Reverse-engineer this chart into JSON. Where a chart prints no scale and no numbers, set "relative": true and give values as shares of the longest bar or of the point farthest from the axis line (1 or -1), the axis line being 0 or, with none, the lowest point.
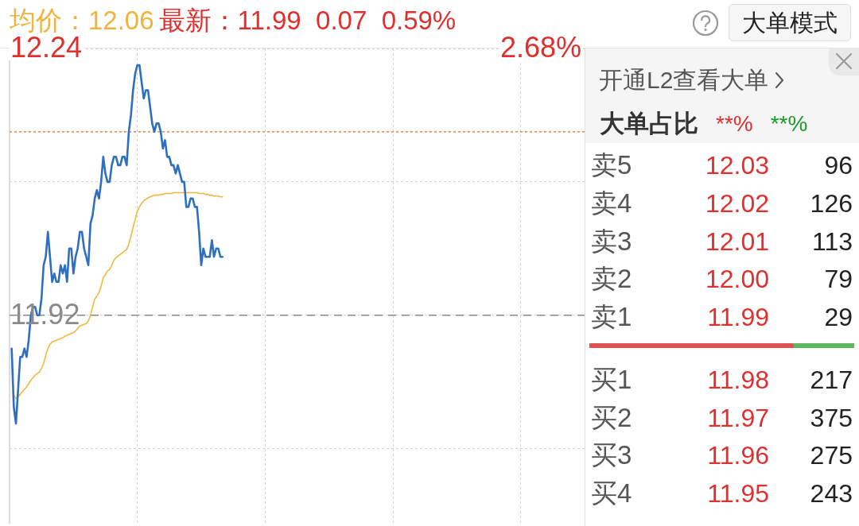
{
  "chart_data": [
    {
      "type": "line",
      "title": "均价：12.06",
      "subtitle": "最新：11.99  0.07  0.59%",
      "annotations": [
        "2.68%",
        "大单模式"
      ],
      "categories": [
        null,
        null,
        null,
        null,
        null,
        null,
        null,
        null,
        null,
        null,
        null,
        null,
        null,
        null,
        null,
        null,
        null,
        null,
        null,
        null,
        null,
        null,
        null,
        null,
        null,
        null,
        null,
        null,
        null,
        null,
        null,
        null,
        null,
        null,
        null,
        null,
        null,
        null,
        null,
        null,
        null,
        null,
        null,
        null,
        null,
        null,
        null,
        null,
        null,
        null,
        null,
        null,
        null,
        null,
        null,
        null,
        null,
        null,
        null,
        null,
        null,
        null,
        null,
        null,
        null,
        null,
        null,
        null,
        null,
        null,
        null,
        null,
        null,
        null,
        null,
        null,
        null,
        null,
        null,
        null,
        null,
        null,
        null,
        null,
        null,
        null,
        null,
        null,
        null,
        null,
        null,
        null,
        null,
        null,
        null,
        null,
        null,
        null,
        null,
        null,
        null,
        null,
        null,
        null,
        null,
        null,
        null,
        null,
        null,
        null,
        null,
        null,
        null,
        null,
        null,
        null,
        null,
        null,
        null,
        null,
        null,
        null,
        null,
        null,
        null,
        null,
        null,
        null,
        null,
        null,
        null,
        null,
        null,
        null,
        null,
        null,
        null,
        null,
        null,
        null,
        null,
        null,
        null,
        null,
        null,
        null,
        null,
        null,
        null,
        null,
        null,
        null,
        null,
        null,
        null,
        null,
        null,
        null,
        null,
        null,
        null,
        null,
        null,
        null,
        null,
        null,
        null,
        null,
        null,
        null,
        null,
        null,
        null,
        null,
        null,
        null,
        null,
        null,
        null,
        null,
        null,
        null,
        null,
        null,
        null,
        null,
        null,
        null,
        null,
        null,
        null,
        null,
        null,
        null,
        null,
        null,
        null,
        null,
        null,
        null,
        null,
        null,
        null,
        null,
        null,
        null,
        null,
        null,
        null,
        null,
        null,
        null,
        null,
        null,
        null,
        null,
        null,
        null,
        null,
        null,
        null,
        null,
        null,
        null,
        null,
        null,
        null,
        null,
        null,
        null,
        null,
        null,
        null,
        null,
        null,
        null,
        null,
        null,
        null,
        null,
        null,
        null,
        null,
        null,
        null,
        null,
        null,
        null,
        null,
        null,
        null,
        null,
        null,
        null,
        null,
        null,
        null,
        null,
        null,
        null,
        null,
        null,
        null,
        null,
        null,
        null,
        null,
        null,
        null,
        null,
        null
      ],
      "series": [
        {
          "color": "#2f6fc0",
          "values": [
            null,
            11.88,
            11.81,
            11.79,
            11.83,
            11.87,
            11.87,
            11.88,
            11.87,
            11.89,
            11.92,
            11.93,
            11.93,
            11.92,
            11.92,
            11.94,
            11.98,
            11.99,
            12.02,
            11.99,
            11.96,
            11.97,
            11.96,
            11.96,
            11.98,
            11.97,
            11.98,
            11.96,
            12.0,
            12.0,
            11.97,
            11.99,
            12.0,
            12.02,
            12.02,
            12.0,
            11.99,
            11.98,
            12.03,
            12.04,
            12.06,
            12.07,
            12.06,
            12.08,
            12.11,
            12.09,
            12.08,
            12.08,
            12.1,
            12.11,
            12.11,
            12.1,
            12.1,
            12.11,
            12.11,
            12.1,
            12.14,
            12.16,
            12.19,
            12.21,
            12.22,
            12.22,
            12.2,
            12.18,
            12.19,
            12.19,
            12.17,
            12.15,
            12.14,
            12.15,
            12.15,
            12.14,
            12.12,
            12.13,
            12.11,
            12.11,
            12.1,
            12.1,
            12.09,
            12.1,
            12.09,
            12.08,
            12.08,
            12.05,
            12.05,
            12.06,
            12.06,
            12.05,
            12.05,
            12.02,
            11.98,
            12.0,
            11.99,
            11.99,
            11.99,
            12.01,
            11.99,
            12.0,
            12.0,
            11.99,
            11.99,
            null,
            null,
            null,
            null,
            null,
            null,
            null,
            null,
            null,
            null,
            null,
            null,
            null,
            null,
            null,
            null,
            null,
            null,
            null,
            null,
            null,
            null,
            null,
            null,
            null,
            null,
            null,
            null,
            null,
            null,
            null,
            null,
            null,
            null,
            null,
            null,
            null,
            null,
            null,
            null,
            null,
            null,
            null,
            null,
            null,
            null,
            null,
            null,
            null,
            null,
            null,
            null,
            null,
            null,
            null,
            null,
            null,
            null,
            null,
            null,
            null,
            null,
            null,
            null,
            null,
            null,
            null,
            null,
            null,
            null,
            null,
            null,
            null,
            null,
            null,
            null,
            null,
            null,
            null,
            null,
            null,
            null,
            null,
            null,
            null,
            null,
            null,
            null,
            null,
            null,
            null,
            null,
            null,
            null,
            null,
            null,
            null,
            null,
            null,
            null,
            null,
            null,
            null,
            null,
            null,
            null,
            null,
            null,
            null,
            null,
            null,
            null,
            null,
            null,
            null,
            null,
            null,
            null,
            null,
            null,
            null,
            null,
            null,
            null,
            null,
            null,
            null,
            null,
            null,
            null,
            null,
            null,
            null,
            null,
            null,
            null,
            null,
            null,
            null,
            null,
            null,
            null,
            null,
            null,
            null,
            null,
            null,
            null,
            null,
            null,
            null,
            null,
            null,
            null,
            null,
            null,
            null,
            null,
            null,
            null,
            null,
            null,
            null,
            null,
            null,
            null,
            null,
            null,
            null,
            null
          ]
        },
        {
          "color": "#f0b840",
          "values": [
            null,
            null,
            11.824,
            11.82,
            11.822,
            11.825,
            11.828,
            11.831,
            11.834,
            11.838,
            11.842,
            11.845,
            11.848,
            11.85,
            11.852,
            11.856,
            11.862,
            11.872,
            11.88,
            11.885,
            11.888,
            11.889,
            11.89,
            11.891,
            11.892,
            11.893,
            11.895,
            11.896,
            11.897,
            11.898,
            11.899,
            11.901,
            11.904,
            11.907,
            11.908,
            11.909,
            11.91,
            11.913,
            11.92,
            11.93,
            11.939,
            11.943,
            11.947,
            11.955,
            11.965,
            11.969,
            11.973,
            11.975,
            11.98,
            11.986,
            11.989,
            11.991,
            11.993,
            11.995,
            11.997,
            11.999,
            12.005,
            12.015,
            12.025,
            12.035,
            12.045,
            12.05,
            12.054,
            12.057,
            12.059,
            12.061,
            12.062,
            12.063,
            12.064,
            12.064,
            12.064,
            12.065,
            12.065,
            12.066,
            12.066,
            12.066,
            12.066,
            12.067,
            12.067,
            12.067,
            12.067,
            12.067,
            12.067,
            12.067,
            12.067,
            12.067,
            12.067,
            12.067,
            12.067,
            12.066,
            12.066,
            12.066,
            12.065,
            12.065,
            12.064,
            12.064,
            12.063,
            12.063,
            12.063,
            12.062,
            12.062,
            null,
            null,
            null,
            null,
            null,
            null,
            null,
            null,
            null,
            null,
            null,
            null,
            null,
            null,
            null,
            null,
            null,
            null,
            null,
            null,
            null,
            null,
            null,
            null,
            null,
            null,
            null,
            null,
            null,
            null,
            null,
            null,
            null,
            null,
            null,
            null,
            null,
            null,
            null,
            null,
            null,
            null,
            null,
            null,
            null,
            null,
            null,
            null,
            null,
            null,
            null,
            null,
            null,
            null,
            null,
            null,
            null,
            null,
            null,
            null,
            null,
            null,
            null,
            null,
            null,
            null,
            null,
            null,
            null,
            null,
            null,
            null,
            null,
            null,
            null,
            null,
            null,
            null,
            null,
            null,
            null,
            null,
            null,
            null,
            null,
            null,
            null,
            null,
            null,
            null,
            null,
            null,
            null,
            null,
            null,
            null,
            null,
            null,
            null,
            null,
            null,
            null,
            null,
            null,
            null,
            null,
            null,
            null,
            null,
            null,
            null,
            null,
            null,
            null,
            null,
            null,
            null,
            null,
            null,
            null,
            null,
            null,
            null,
            null,
            null,
            null,
            null,
            null,
            null,
            null,
            null,
            null,
            null,
            null,
            null,
            null,
            null,
            null,
            null,
            null,
            null,
            null,
            null,
            null,
            null,
            null,
            null,
            null,
            null,
            null,
            null,
            null,
            null,
            null,
            null,
            null,
            null,
            null,
            null,
            null,
            null,
            null,
            null,
            null,
            null,
            null,
            null,
            null,
            null,
            null
          ]
        }
      ],
      "ylim": [
        11.67,
        12.24
      ],
      "yticks": [
        12.24,
        {
          "value": 12.08,
          "label": null
        },
        11.92,
        {
          "value": 11.76,
          "label": null
        }
      ],
      "tick_labels": "y",
      "grid": true,
      "marker": "none",
      "ref_lines": [
        {
          "axis": "y",
          "value": 11.92,
          "color": "#888888",
          "line_style": "dashed"
        },
        {
          "axis": "y",
          "value": 12.14,
          "color": "#c8783c",
          "line_style": "dotted"
        }
      ]
    },
    {
      "type": "other",
      "title": "开通L2查看大单",
      "subtitle": "大单占比",
      "annotations": [
        "**%",
        "**%"
      ],
      "categories": [
        "卖5",
        "卖4",
        "卖3",
        "卖2",
        "卖1",
        "买1",
        "买2",
        "买3",
        "买4"
      ],
      "series": [
        {
          "color": "#e02f2f",
          "values": [
            12.03,
            12.02,
            12.01,
            12.0,
            11.99,
            11.98,
            11.97,
            11.96,
            11.95
          ],
          "value_labels": [
            "12.03",
            "12.02",
            "12.01",
            "12.00",
            "11.99",
            "11.98",
            "11.97",
            "11.96",
            "11.95"
          ]
        },
        {
          "color": "#222222",
          "values": [
            96,
            126,
            113,
            79,
            29,
            217,
            375,
            275,
            243
          ],
          "value_labels": [
            "96",
            "126",
            "113",
            "79",
            "29",
            "217",
            "375",
            "275",
            "243"
          ]
        }
      ]
    },
    {
      "type": "bar",
      "orientation": "horizontal",
      "stacked": true,
      "relative": true,
      "categories": [
        null
      ],
      "series": [
        {
          "color": "#e05252",
          "values": [
            0.77
          ]
        },
        {
          "color": "#5cb85c",
          "values": [
            0.23
          ]
        }
      ]
    }
  ]
}
